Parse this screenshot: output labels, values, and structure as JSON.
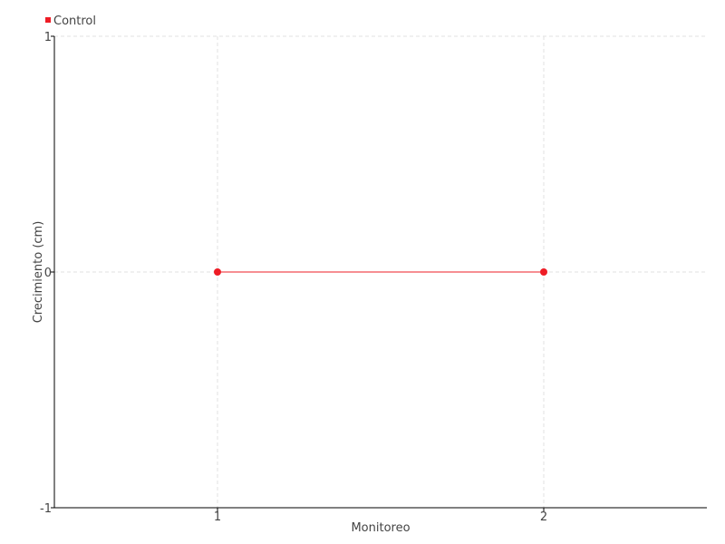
{
  "chart_data": {
    "type": "line",
    "xlabel": "Monitoreo",
    "ylabel": "Crecimiento (cm)",
    "x_ticks": [
      "1",
      "2"
    ],
    "y_ticks": [
      "1",
      "0",
      "-1"
    ],
    "xlim": [
      0.5,
      2.5
    ],
    "ylim": [
      -1,
      1
    ],
    "grid": true,
    "legend_position": "top-left",
    "series": [
      {
        "name": "Control",
        "color": "#ee1c25",
        "x": [
          1,
          2
        ],
        "y": [
          0,
          0
        ]
      }
    ]
  }
}
